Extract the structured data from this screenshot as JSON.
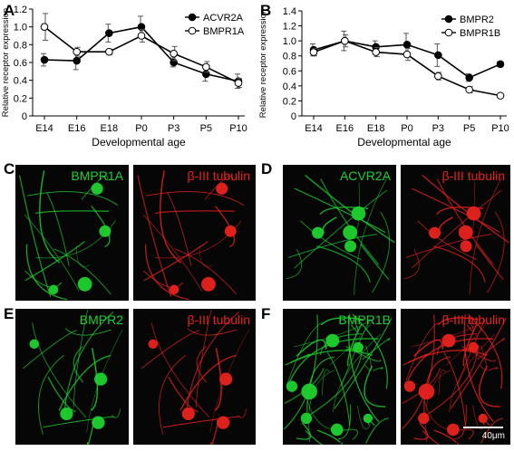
{
  "panels": {
    "A": "A",
    "B": "B",
    "C": "C",
    "D": "D",
    "E": "E",
    "F": "F"
  },
  "chart_data": [
    {
      "type": "line",
      "panel": "A",
      "xlabel": "Developmental age",
      "ylabel": "Relative receptor expression",
      "categories": [
        "E14",
        "E16",
        "E18",
        "P0",
        "P3",
        "P5",
        "P10"
      ],
      "ylim": [
        0,
        1.2
      ],
      "yticks": [
        "0",
        "0.2",
        "0.4",
        "0.6",
        "0.8",
        "1.0",
        "1.2"
      ],
      "legend_position": "top-right",
      "series": [
        {
          "name": "ACVR2A",
          "marker": "filled",
          "values": [
            0.63,
            0.62,
            0.93,
            1.0,
            0.6,
            0.47,
            0.39
          ],
          "errors": [
            0.07,
            0.1,
            0.1,
            0.12,
            0.05,
            0.08,
            0.08
          ]
        },
        {
          "name": "BMPR1A",
          "marker": "open",
          "values": [
            1.0,
            0.72,
            0.72,
            0.9,
            0.7,
            0.55,
            0.37
          ],
          "errors": [
            0.15,
            0.05,
            0.03,
            0.07,
            0.08,
            0.06,
            0.05
          ]
        }
      ]
    },
    {
      "type": "line",
      "panel": "B",
      "xlabel": "Developmental age",
      "ylabel": "Relative receptor expression",
      "categories": [
        "E14",
        "E16",
        "E18",
        "P0",
        "P3",
        "P5",
        "P10"
      ],
      "ylim": [
        0,
        1.4
      ],
      "yticks": [
        "0",
        "0.2",
        "0.4",
        "0.6",
        "0.8",
        "1.0",
        "1.2",
        "1.4"
      ],
      "legend_position": "top-right",
      "series": [
        {
          "name": "BMPR2",
          "marker": "filled",
          "values": [
            0.88,
            1.0,
            0.92,
            0.95,
            0.81,
            0.51,
            0.69
          ],
          "errors": [
            0.08,
            0.13,
            0.08,
            0.15,
            0.15,
            0.05,
            0.03
          ]
        },
        {
          "name": "BMPR1B",
          "marker": "open",
          "values": [
            0.85,
            1.0,
            0.85,
            0.82,
            0.53,
            0.35,
            0.27
          ],
          "errors": [
            0.05,
            0.08,
            0.06,
            0.08,
            0.05,
            0.04,
            0.02
          ]
        }
      ]
    }
  ],
  "micrographs": [
    {
      "panel": "C",
      "left": {
        "label": "BMPR1A",
        "color": "#1fd12f"
      },
      "right": {
        "label": "β-III tubulin",
        "color": "#e8221d"
      }
    },
    {
      "panel": "D",
      "left": {
        "label": "ACVR2A",
        "color": "#1fd12f"
      },
      "right": {
        "label": "β-III tubulin",
        "color": "#e8221d"
      }
    },
    {
      "panel": "E",
      "left": {
        "label": "BMPR2",
        "color": "#1fd12f"
      },
      "right": {
        "label": "β-III tubulin",
        "color": "#e8221d"
      }
    },
    {
      "panel": "F",
      "left": {
        "label": "BMPR1B",
        "color": "#1fd12f"
      },
      "right": {
        "label": "β-III tubulin",
        "color": "#e8221d"
      },
      "scale_bar": "40μm"
    }
  ]
}
